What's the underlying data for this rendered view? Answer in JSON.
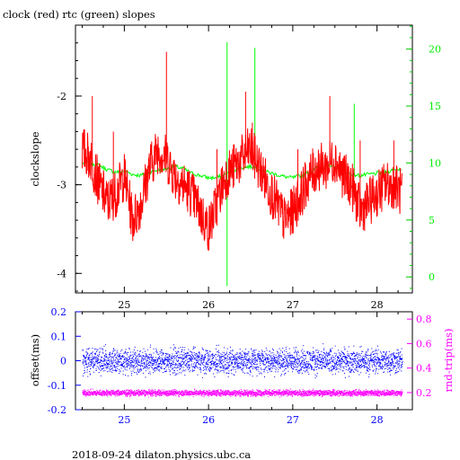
{
  "title": "clock (red) rtc (green) slopes",
  "footer": "2018-09-24 dilaton.physics.ubc.ca",
  "chart_data": [
    {
      "type": "line",
      "xlabel": "",
      "ylabel": "clockslope",
      "xlim": [
        24.42,
        28.42
      ],
      "ylim": [
        -4.22,
        -1.2
      ],
      "y2lim": [
        -1.4,
        22.1
      ],
      "x_ticks": [
        "25",
        "26",
        "27",
        "28"
      ],
      "y_ticks": [
        "-2",
        "-3",
        "-4"
      ],
      "y2_ticks": [
        "0",
        "5",
        "10",
        "15",
        "20"
      ],
      "series": [
        {
          "name": "clock",
          "color": "#ff0000",
          "axis": "left",
          "x": [
            24.5,
            24.6,
            24.7,
            24.8,
            24.9,
            25.0,
            25.1,
            25.2,
            25.3,
            25.4,
            25.5,
            25.6,
            25.7,
            25.8,
            25.9,
            26.0,
            26.1,
            26.2,
            26.3,
            26.4,
            26.5,
            26.6,
            26.7,
            26.8,
            26.9,
            27.0,
            27.1,
            27.2,
            27.3,
            27.4,
            27.5,
            27.6,
            27.7,
            27.8,
            27.9,
            28.0,
            28.1,
            28.2,
            28.3
          ],
          "values": [
            -2.6,
            -2.7,
            -3.0,
            -3.2,
            -3.1,
            -2.9,
            -3.4,
            -3.2,
            -2.8,
            -2.6,
            -2.7,
            -2.9,
            -3.0,
            -3.1,
            -3.3,
            -3.5,
            -3.2,
            -2.9,
            -2.8,
            -2.7,
            -2.6,
            -2.8,
            -3.0,
            -3.2,
            -3.4,
            -3.3,
            -3.1,
            -2.9,
            -2.8,
            -2.8,
            -2.7,
            -2.9,
            -3.0,
            -3.3,
            -3.2,
            -3.1,
            -3.0,
            -3.0,
            -3.1
          ],
          "spikes": [
            {
              "x": 24.62,
              "value": -2.0
            },
            {
              "x": 24.87,
              "value": -2.4
            },
            {
              "x": 25.5,
              "value": -1.5
            },
            {
              "x": 26.1,
              "value": -2.6
            },
            {
              "x": 26.44,
              "value": -1.95
            },
            {
              "x": 26.52,
              "value": -2.3
            },
            {
              "x": 27.06,
              "value": -2.6
            },
            {
              "x": 27.44,
              "value": -2.0
            },
            {
              "x": 27.8,
              "value": -2.5
            },
            {
              "x": 28.2,
              "value": -2.5
            }
          ]
        },
        {
          "name": "rtc",
          "color": "#00ff00",
          "axis": "right",
          "x": [
            24.5,
            24.6,
            24.7,
            24.8,
            24.9,
            25.0,
            25.1,
            25.2,
            25.3,
            25.4,
            25.5,
            25.6,
            25.7,
            25.8,
            25.9,
            26.0,
            26.1,
            26.2,
            26.3,
            26.4,
            26.5,
            26.6,
            26.7,
            26.8,
            26.9,
            27.0,
            27.1,
            27.2,
            27.3,
            27.4,
            27.5,
            27.6,
            27.7,
            27.8,
            27.9,
            28.0,
            28.1,
            28.2,
            28.3
          ],
          "values": [
            10.0,
            10.0,
            9.8,
            9.4,
            9.2,
            9.3,
            9.0,
            8.9,
            9.2,
            9.4,
            9.5,
            9.7,
            9.5,
            9.1,
            8.9,
            8.7,
            8.7,
            9.0,
            9.4,
            9.6,
            9.7,
            9.5,
            9.2,
            9.0,
            8.8,
            8.7,
            8.9,
            9.2,
            9.6,
            9.7,
            9.6,
            9.3,
            9.0,
            8.9,
            9.0,
            9.1,
            9.2,
            9.4,
            9.5
          ],
          "spikes": [
            {
              "x": 26.22,
              "value": 20.6
            },
            {
              "x": 26.22,
              "value": -0.8
            },
            {
              "x": 26.55,
              "value": 20.1
            },
            {
              "x": 27.73,
              "value": 15.2
            }
          ]
        }
      ]
    },
    {
      "type": "scatter",
      "xlabel": "",
      "ylabel": "offset(ms)",
      "y2label": "rnd-trip(ms)",
      "xlim": [
        24.42,
        28.42
      ],
      "ylim": [
        -0.2,
        0.2
      ],
      "y2lim": [
        0.06,
        0.86
      ],
      "x_ticks": [
        "25",
        "26",
        "27",
        "28"
      ],
      "y_ticks": [
        "0.2",
        "0.1",
        "0",
        "-0.1",
        "-0.2"
      ],
      "y2_ticks": [
        "0.2",
        "0.4",
        "0.6",
        "0.8"
      ],
      "series": [
        {
          "name": "offset",
          "color": "#0000ff",
          "axis": "left",
          "x_range": [
            24.5,
            28.3
          ],
          "center": 0.0,
          "spread": 0.025
        },
        {
          "name": "rnd-trip",
          "color": "#ff00ff",
          "axis": "right",
          "x_range": [
            24.5,
            28.3
          ],
          "center": 0.2,
          "spread": 0.012
        }
      ]
    }
  ]
}
